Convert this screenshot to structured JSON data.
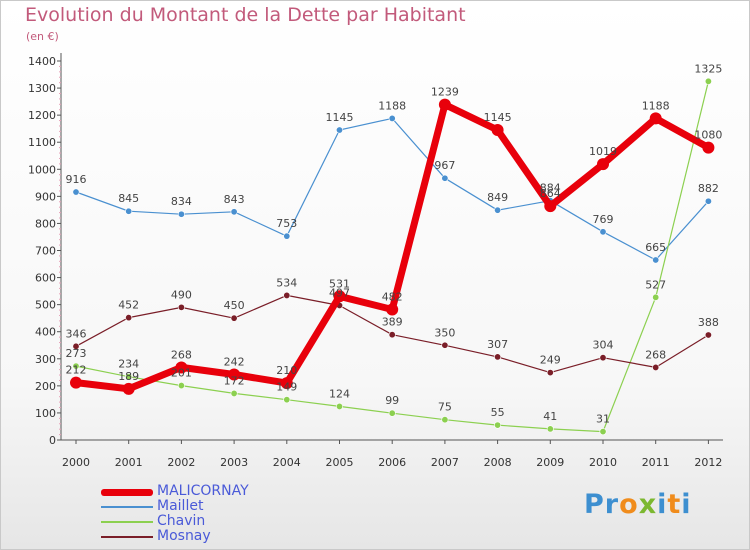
{
  "header": {
    "title": "Evolution du Montant de la Dette par Habitant",
    "subtitle": "(en €)"
  },
  "logo": {
    "text": "Proxiti",
    "letter_colors": [
      "#3d8fd0",
      "#3d8fd0",
      "#f08c1c",
      "#7cb830",
      "#3d8fd0",
      "#f08c1c",
      "#3d8fd0"
    ]
  },
  "chart_data": {
    "type": "line",
    "title": "Evolution du Montant de la Dette par Habitant",
    "ylabel": "(en €)",
    "xlabel": "",
    "x": [
      "2000",
      "2001",
      "2002",
      "2003",
      "2004",
      "2005",
      "2006",
      "2007",
      "2008",
      "2009",
      "2010",
      "2011",
      "2012"
    ],
    "ylim": [
      0,
      1400
    ],
    "yticks": [
      "0",
      "100",
      "200",
      "300",
      "400",
      "500",
      "600",
      "700",
      "800",
      "900",
      "1000",
      "1100",
      "1200",
      "1300",
      "1400"
    ],
    "grid": false,
    "legend": "bottom-left",
    "series": [
      {
        "name": "MALICORNAY",
        "color": "#e8000b",
        "values": [
          212,
          189,
          268,
          242,
          210,
          531,
          482,
          1239,
          1145,
          864,
          1019,
          1188,
          1080
        ],
        "labels": [
          "212",
          "189",
          "268",
          "242",
          "210",
          "531",
          "482",
          "1239",
          "1145",
          "864",
          "1019",
          "1188",
          "1080"
        ]
      },
      {
        "name": "Maillet",
        "color": "#4a90d0",
        "values": [
          916,
          845,
          834,
          843,
          753,
          1145,
          1188,
          967,
          849,
          884,
          769,
          665,
          882
        ],
        "labels": [
          "916",
          "845",
          "834",
          "843",
          "753",
          "1145",
          "1188",
          "967",
          "849",
          "884",
          "769",
          "665",
          "882"
        ]
      },
      {
        "name": "Chavin",
        "color": "#8cd050",
        "values": [
          273,
          234,
          201,
          172,
          149,
          124,
          99,
          75,
          55,
          41,
          31,
          527,
          1325
        ],
        "labels": [
          "273",
          "234",
          "201",
          "172",
          "149",
          "124",
          "99",
          "75",
          "55",
          "41",
          "31",
          "527",
          "1325"
        ]
      },
      {
        "name": "Mosnay",
        "color": "#7a1e28",
        "values": [
          346,
          452,
          490,
          450,
          534,
          497,
          389,
          350,
          307,
          249,
          304,
          268,
          388
        ],
        "labels": [
          "346",
          "452",
          "490",
          "450",
          "534",
          "497",
          "389",
          "350",
          "307",
          "249",
          "304",
          "268",
          "388"
        ]
      }
    ]
  }
}
